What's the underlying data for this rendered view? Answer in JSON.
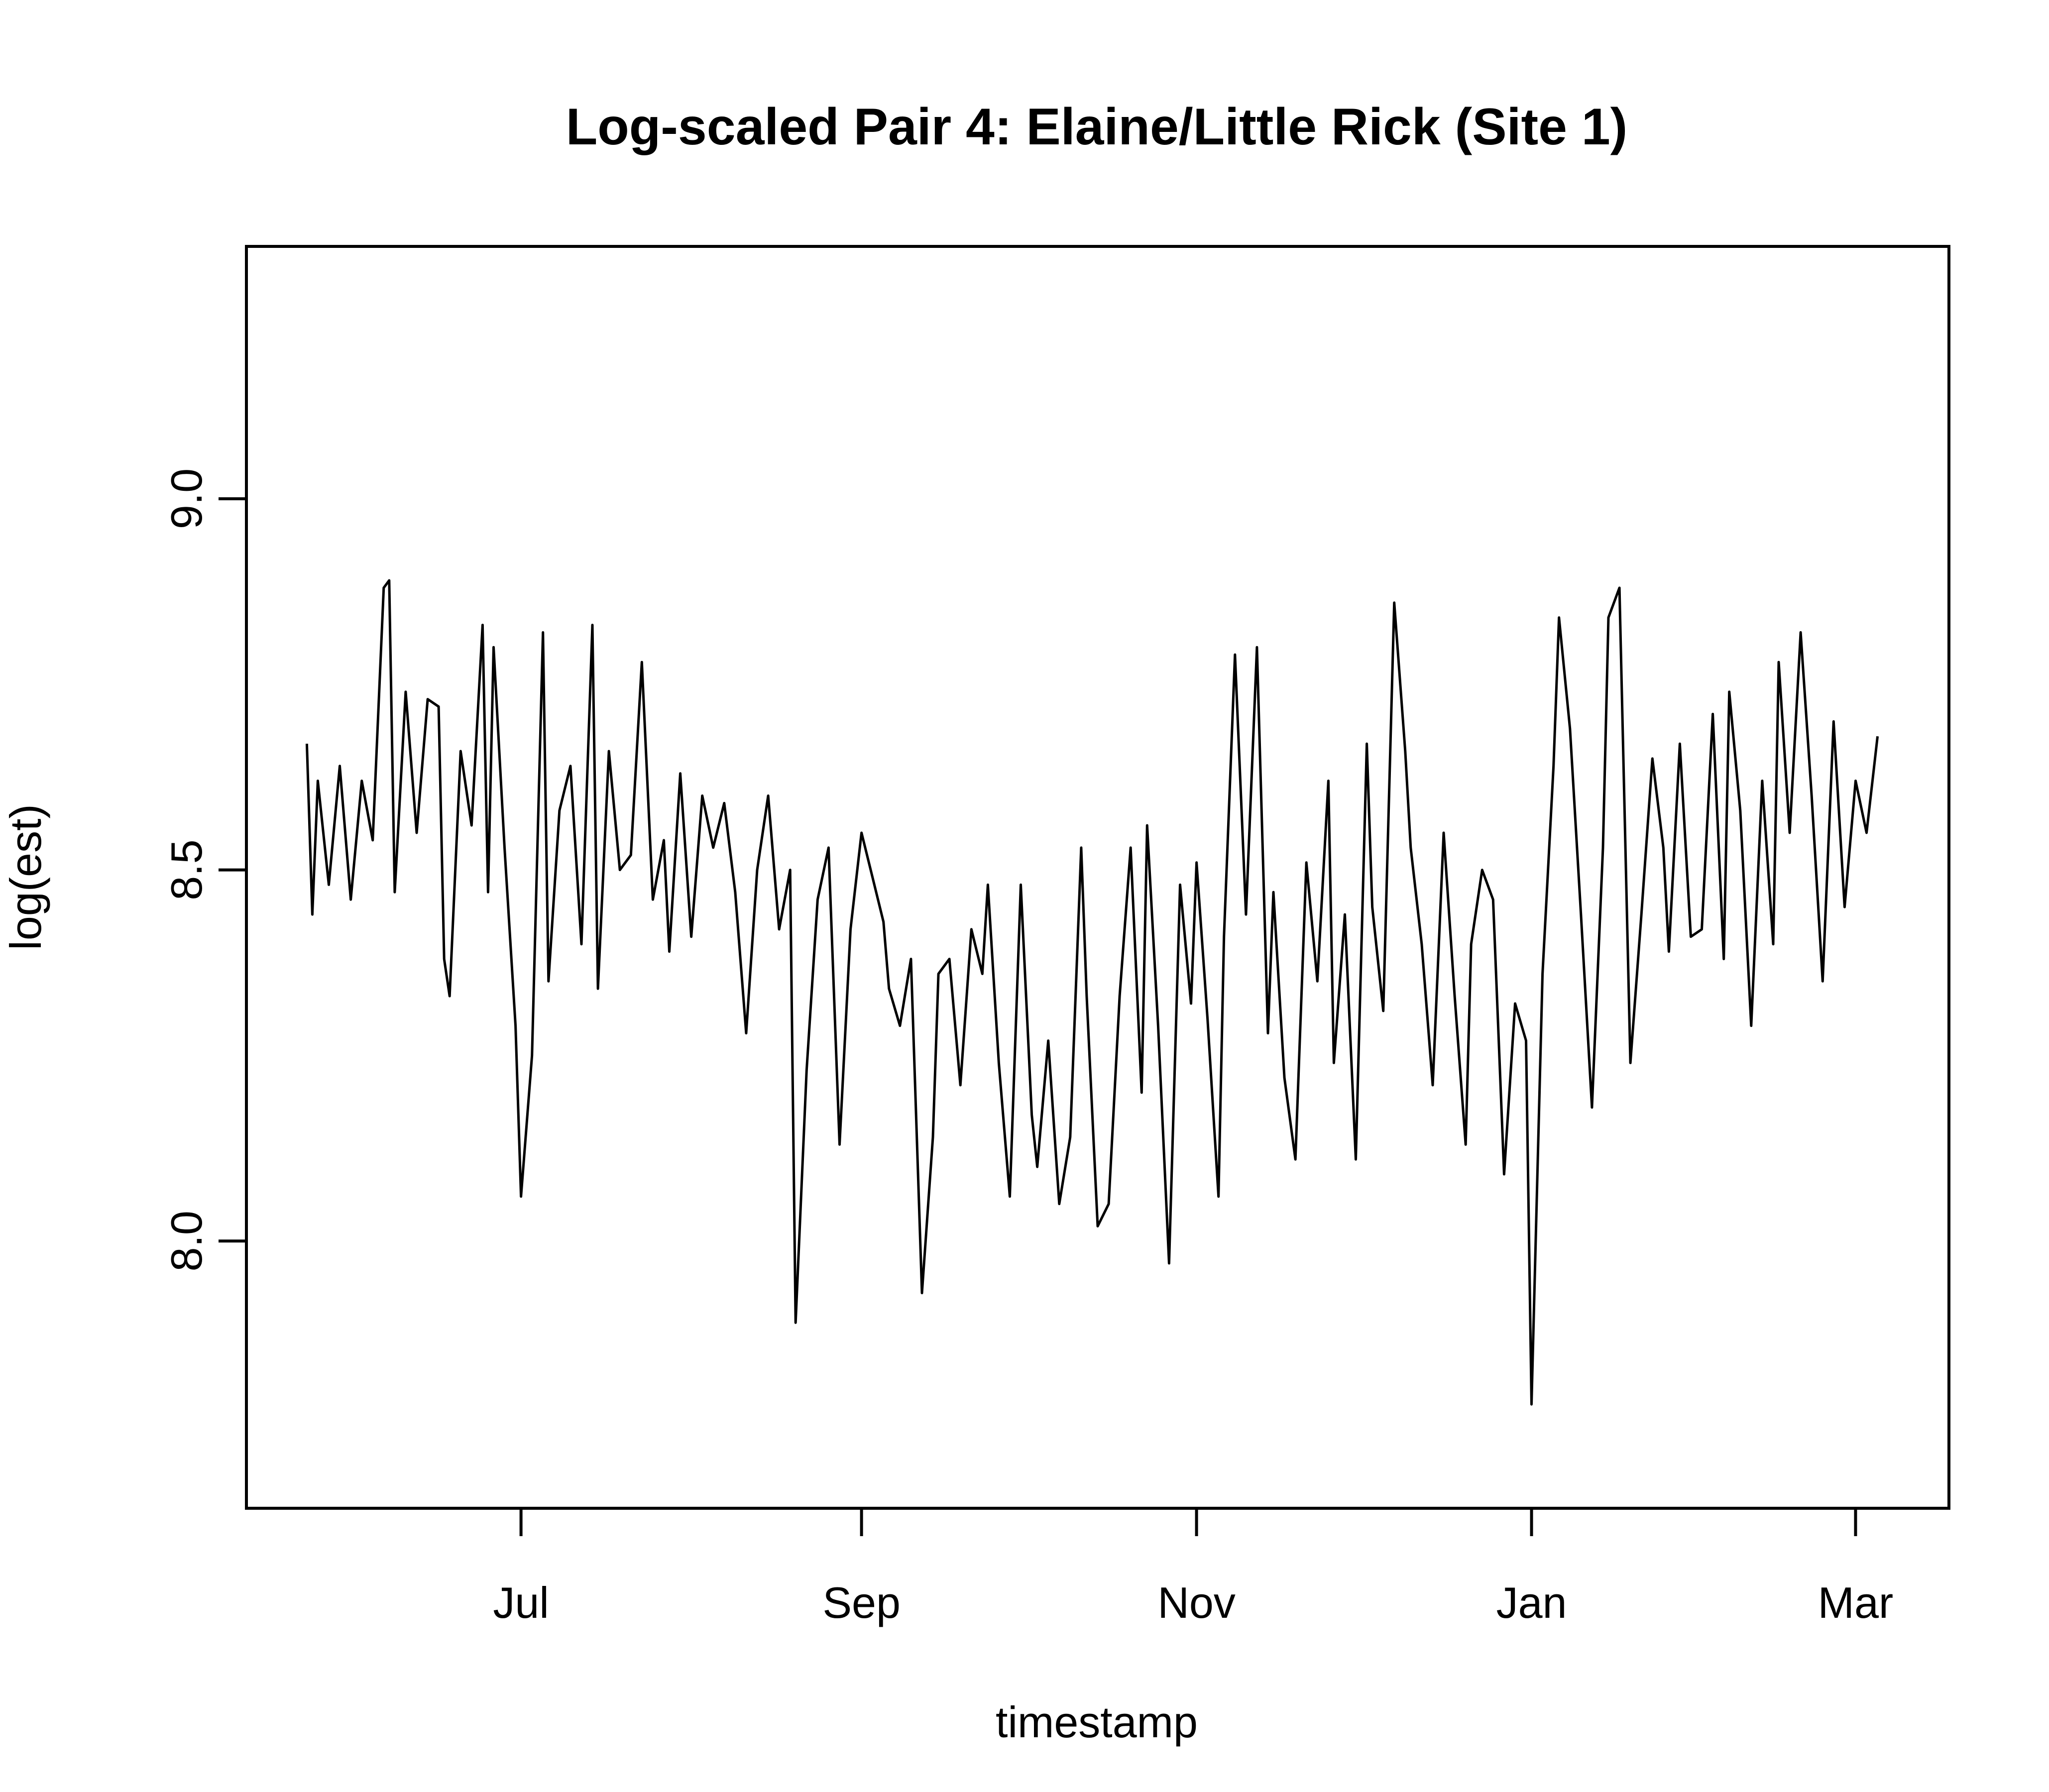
{
  "chart_data": {
    "type": "line",
    "title": "Log-scaled Pair 4: Elaine/Little Rick (Site 1)",
    "xlabel": "timestamp",
    "ylabel": "log(est)",
    "grid": false,
    "legend": "none",
    "xlim": [
      "2016-05-12",
      "2017-03-18"
    ],
    "ylim": [
      7.64,
      9.34
    ],
    "x_ticks": [
      {
        "date": "2016-07-01",
        "label": "Jul"
      },
      {
        "date": "2016-09-01",
        "label": "Sep"
      },
      {
        "date": "2016-11-01",
        "label": "Nov"
      },
      {
        "date": "2017-01-01",
        "label": "Jan"
      },
      {
        "date": "2017-03-01",
        "label": "Mar"
      }
    ],
    "y_ticks": [
      {
        "value": 8.0,
        "label": "8.0"
      },
      {
        "value": 8.5,
        "label": "8.5"
      },
      {
        "value": 9.0,
        "label": "9.0"
      }
    ],
    "series": [
      {
        "color": "#000000",
        "points": [
          [
            "2016-05-23",
            8.67
          ],
          [
            "2016-05-24",
            8.44
          ],
          [
            "2016-05-25",
            8.62
          ],
          [
            "2016-05-27",
            8.48
          ],
          [
            "2016-05-29",
            8.64
          ],
          [
            "2016-05-31",
            8.46
          ],
          [
            "2016-06-02",
            8.62
          ],
          [
            "2016-06-04",
            8.54
          ],
          [
            "2016-06-06",
            8.88
          ],
          [
            "2016-06-07",
            8.89
          ],
          [
            "2016-06-08",
            8.47
          ],
          [
            "2016-06-10",
            8.74
          ],
          [
            "2016-06-12",
            8.55
          ],
          [
            "2016-06-14",
            8.73
          ],
          [
            "2016-06-16",
            8.72
          ],
          [
            "2016-06-17",
            8.38
          ],
          [
            "2016-06-18",
            8.33
          ],
          [
            "2016-06-20",
            8.66
          ],
          [
            "2016-06-22",
            8.56
          ],
          [
            "2016-06-24",
            8.83
          ],
          [
            "2016-06-25",
            8.47
          ],
          [
            "2016-06-26",
            8.8
          ],
          [
            "2016-06-28",
            8.53
          ],
          [
            "2016-06-30",
            8.29
          ],
          [
            "2016-07-01",
            8.06
          ],
          [
            "2016-07-03",
            8.25
          ],
          [
            "2016-07-05",
            8.82
          ],
          [
            "2016-07-06",
            8.35
          ],
          [
            "2016-07-08",
            8.58
          ],
          [
            "2016-07-10",
            8.64
          ],
          [
            "2016-07-12",
            8.4
          ],
          [
            "2016-07-14",
            8.83
          ],
          [
            "2016-07-15",
            8.34
          ],
          [
            "2016-07-17",
            8.66
          ],
          [
            "2016-07-19",
            8.5
          ],
          [
            "2016-07-21",
            8.52
          ],
          [
            "2016-07-23",
            8.78
          ],
          [
            "2016-07-25",
            8.46
          ],
          [
            "2016-07-27",
            8.54
          ],
          [
            "2016-07-28",
            8.39
          ],
          [
            "2016-07-30",
            8.63
          ],
          [
            "2016-08-01",
            8.41
          ],
          [
            "2016-08-03",
            8.6
          ],
          [
            "2016-08-05",
            8.53
          ],
          [
            "2016-08-07",
            8.59
          ],
          [
            "2016-08-09",
            8.47
          ],
          [
            "2016-08-11",
            8.28
          ],
          [
            "2016-08-13",
            8.5
          ],
          [
            "2016-08-15",
            8.6
          ],
          [
            "2016-08-17",
            8.42
          ],
          [
            "2016-08-19",
            8.5
          ],
          [
            "2016-08-20",
            7.89
          ],
          [
            "2016-08-22",
            8.23
          ],
          [
            "2016-08-24",
            8.46
          ],
          [
            "2016-08-26",
            8.53
          ],
          [
            "2016-08-28",
            8.13
          ],
          [
            "2016-08-30",
            8.42
          ],
          [
            "2016-09-01",
            8.55
          ],
          [
            "2016-09-03",
            8.49
          ],
          [
            "2016-09-05",
            8.43
          ],
          [
            "2016-09-06",
            8.34
          ],
          [
            "2016-09-08",
            8.29
          ],
          [
            "2016-09-10",
            8.38
          ],
          [
            "2016-09-12",
            7.93
          ],
          [
            "2016-09-14",
            8.14
          ],
          [
            "2016-09-15",
            8.36
          ],
          [
            "2016-09-17",
            8.38
          ],
          [
            "2016-09-19",
            8.21
          ],
          [
            "2016-09-21",
            8.42
          ],
          [
            "2016-09-23",
            8.36
          ],
          [
            "2016-09-24",
            8.48
          ],
          [
            "2016-09-26",
            8.24
          ],
          [
            "2016-09-28",
            8.06
          ],
          [
            "2016-09-30",
            8.48
          ],
          [
            "2016-10-02",
            8.17
          ],
          [
            "2016-10-03",
            8.1
          ],
          [
            "2016-10-05",
            8.27
          ],
          [
            "2016-10-07",
            8.05
          ],
          [
            "2016-10-09",
            8.14
          ],
          [
            "2016-10-11",
            8.53
          ],
          [
            "2016-10-12",
            8.33
          ],
          [
            "2016-10-14",
            8.02
          ],
          [
            "2016-10-16",
            8.05
          ],
          [
            "2016-10-18",
            8.33
          ],
          [
            "2016-10-20",
            8.53
          ],
          [
            "2016-10-22",
            8.2
          ],
          [
            "2016-10-23",
            8.56
          ],
          [
            "2016-10-25",
            8.29
          ],
          [
            "2016-10-27",
            7.97
          ],
          [
            "2016-10-29",
            8.48
          ],
          [
            "2016-10-31",
            8.32
          ],
          [
            "2016-11-01",
            8.51
          ],
          [
            "2016-11-03",
            8.3
          ],
          [
            "2016-11-05",
            8.06
          ],
          [
            "2016-11-06",
            8.41
          ],
          [
            "2016-11-08",
            8.79
          ],
          [
            "2016-11-10",
            8.44
          ],
          [
            "2016-11-12",
            8.8
          ],
          [
            "2016-11-14",
            8.28
          ],
          [
            "2016-11-15",
            8.47
          ],
          [
            "2016-11-17",
            8.22
          ],
          [
            "2016-11-19",
            8.11
          ],
          [
            "2016-11-21",
            8.51
          ],
          [
            "2016-11-23",
            8.35
          ],
          [
            "2016-11-25",
            8.62
          ],
          [
            "2016-11-26",
            8.24
          ],
          [
            "2016-11-28",
            8.44
          ],
          [
            "2016-11-30",
            8.11
          ],
          [
            "2016-12-02",
            8.67
          ],
          [
            "2016-12-03",
            8.45
          ],
          [
            "2016-12-05",
            8.31
          ],
          [
            "2016-12-07",
            8.86
          ],
          [
            "2016-12-09",
            8.66
          ],
          [
            "2016-12-10",
            8.53
          ],
          [
            "2016-12-12",
            8.4
          ],
          [
            "2016-12-14",
            8.21
          ],
          [
            "2016-12-16",
            8.55
          ],
          [
            "2016-12-18",
            8.33
          ],
          [
            "2016-12-20",
            8.13
          ],
          [
            "2016-12-21",
            8.4
          ],
          [
            "2016-12-23",
            8.5
          ],
          [
            "2016-12-25",
            8.46
          ],
          [
            "2016-12-27",
            8.09
          ],
          [
            "2016-12-29",
            8.32
          ],
          [
            "2016-12-31",
            8.27
          ],
          [
            "2017-01-01",
            7.78
          ],
          [
            "2017-01-03",
            8.36
          ],
          [
            "2017-01-05",
            8.64
          ],
          [
            "2017-01-06",
            8.84
          ],
          [
            "2017-01-08",
            8.69
          ],
          [
            "2017-01-10",
            8.44
          ],
          [
            "2017-01-12",
            8.18
          ],
          [
            "2017-01-14",
            8.53
          ],
          [
            "2017-01-15",
            8.84
          ],
          [
            "2017-01-17",
            8.88
          ],
          [
            "2017-01-19",
            8.24
          ],
          [
            "2017-01-21",
            8.44
          ],
          [
            "2017-01-23",
            8.65
          ],
          [
            "2017-01-25",
            8.53
          ],
          [
            "2017-01-26",
            8.39
          ],
          [
            "2017-01-28",
            8.67
          ],
          [
            "2017-01-30",
            8.41
          ],
          [
            "2017-02-01",
            8.42
          ],
          [
            "2017-02-03",
            8.71
          ],
          [
            "2017-02-05",
            8.38
          ],
          [
            "2017-02-06",
            8.74
          ],
          [
            "2017-02-08",
            8.58
          ],
          [
            "2017-02-10",
            8.29
          ],
          [
            "2017-02-12",
            8.62
          ],
          [
            "2017-02-14",
            8.4
          ],
          [
            "2017-02-15",
            8.78
          ],
          [
            "2017-02-17",
            8.55
          ],
          [
            "2017-02-19",
            8.82
          ],
          [
            "2017-02-21",
            8.6
          ],
          [
            "2017-02-23",
            8.35
          ],
          [
            "2017-02-25",
            8.7
          ],
          [
            "2017-02-27",
            8.45
          ],
          [
            "2017-03-01",
            8.62
          ],
          [
            "2017-03-03",
            8.55
          ],
          [
            "2017-03-05",
            8.68
          ]
        ]
      }
    ]
  }
}
